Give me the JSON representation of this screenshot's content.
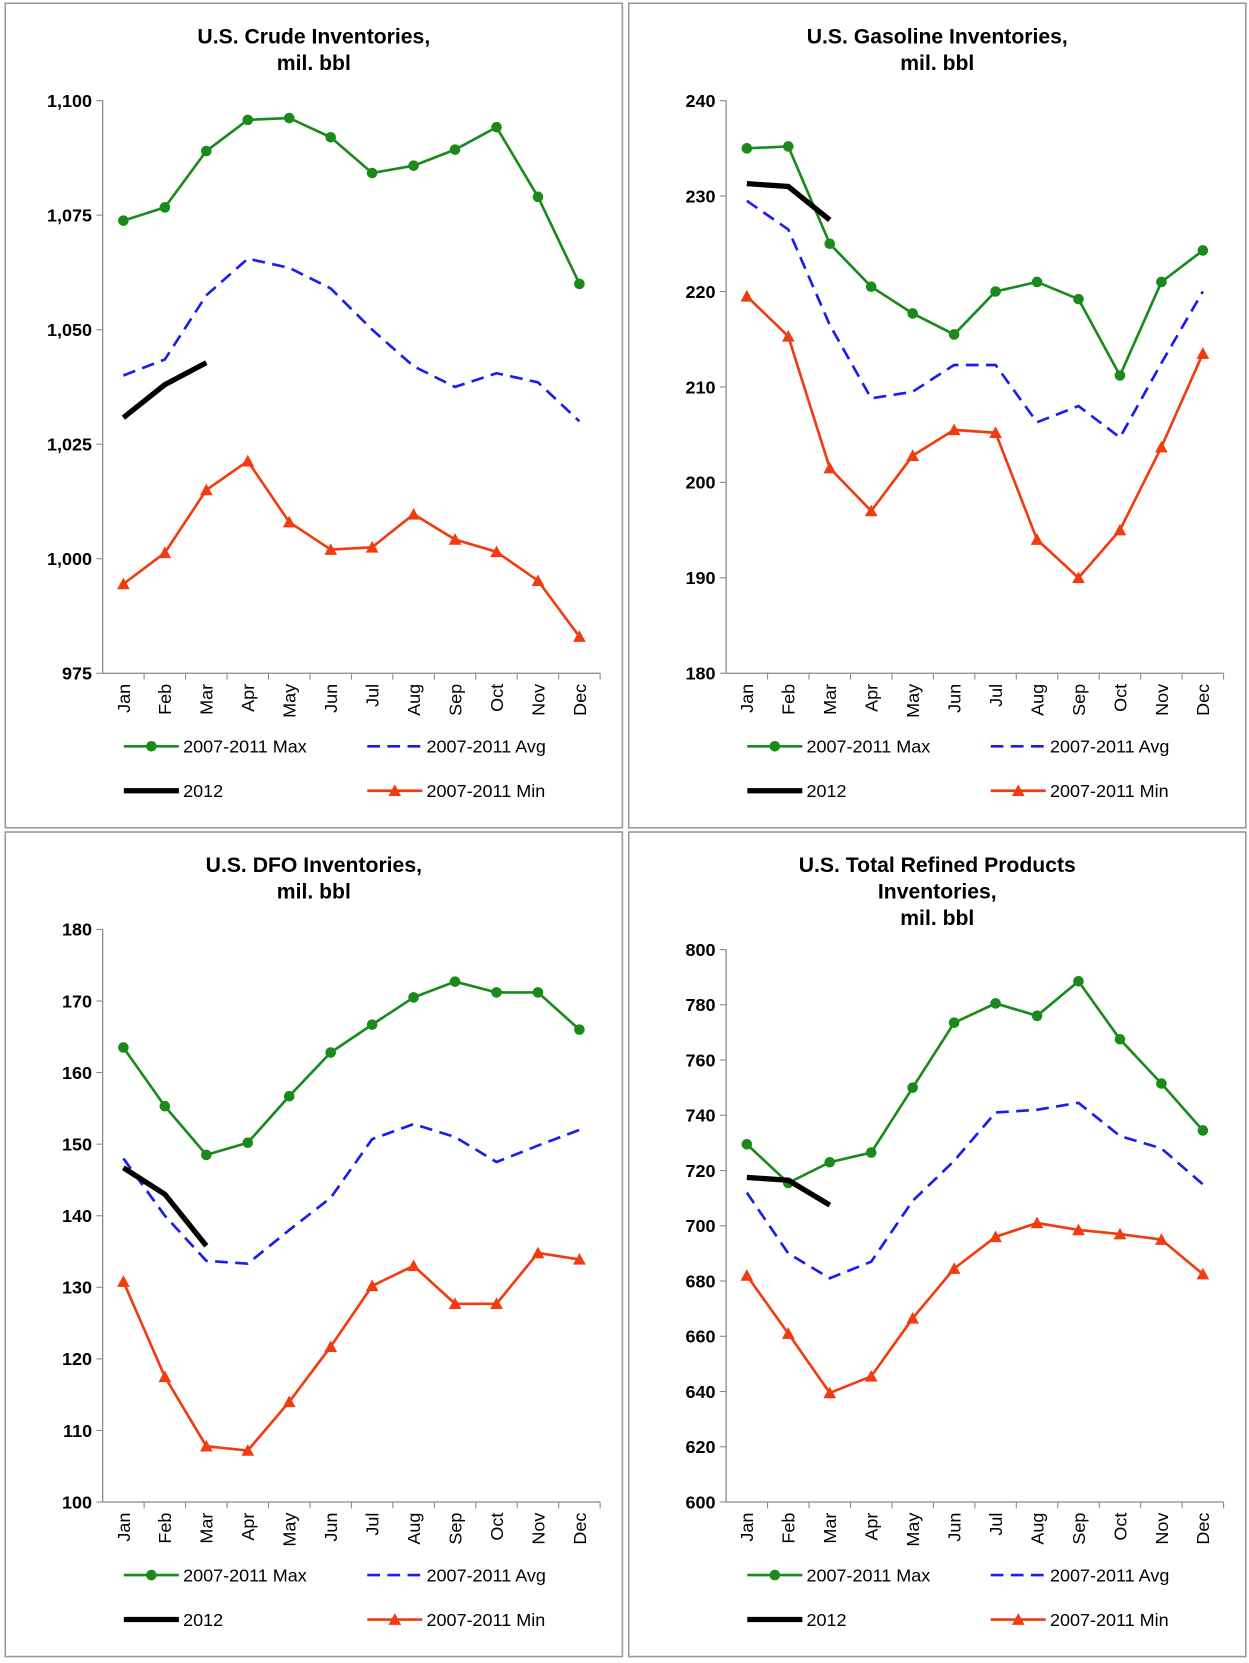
{
  "chart_data": [
    {
      "type": "line",
      "title": [
        "U.S. Crude Inventories,",
        "mil. bbl"
      ],
      "categories": [
        "Jan",
        "Feb",
        "Mar",
        "Apr",
        "May",
        "Jun",
        "Jul",
        "Aug",
        "Sep",
        "Oct",
        "Nov",
        "Dec"
      ],
      "ylim": [
        975,
        1100
      ],
      "yticks": [
        {
          "value": 975,
          "label": "975"
        },
        {
          "value": 1000,
          "label": "1,000"
        },
        {
          "value": 1025,
          "label": "1,025"
        },
        {
          "value": 1050,
          "label": "1,050"
        },
        {
          "value": 1075,
          "label": "1,075"
        },
        {
          "value": 1100,
          "label": "1,100"
        }
      ],
      "series": [
        {
          "name": "2007-2011 Max",
          "color": "#1a8a1a",
          "marker": "circle",
          "values": [
            1073.8,
            1076.7,
            1089,
            1095.8,
            1096.2,
            1092,
            1084.2,
            1085.8,
            1089.3,
            1094.2,
            1079,
            1060
          ]
        },
        {
          "name": "2007-2011 Avg",
          "color": "#1c1cf0",
          "dashed": true,
          "values": [
            1040,
            1043.5,
            1057.5,
            1065.5,
            1063.5,
            1059,
            1050,
            1042,
            1037.5,
            1040.5,
            1038.5,
            1030
          ]
        },
        {
          "name": "2012",
          "color": "#000000",
          "values": [
            1030.8,
            1038,
            1042.8,
            null,
            null,
            null,
            null,
            null,
            null,
            null,
            null,
            null
          ]
        },
        {
          "name": "2007-2011 Min",
          "color": "#f03c10",
          "marker": "triangle",
          "values": [
            994.5,
            1001.3,
            1015,
            1021.3,
            1008,
            1002,
            1002.5,
            1009.7,
            1004.2,
            1001.5,
            995.2,
            983
          ]
        }
      ]
    },
    {
      "type": "line",
      "title": [
        "U.S. Gasoline Inventories,",
        "mil. bbl"
      ],
      "categories": [
        "Jan",
        "Feb",
        "Mar",
        "Apr",
        "May",
        "Jun",
        "Jul",
        "Aug",
        "Sep",
        "Oct",
        "Nov",
        "Dec"
      ],
      "ylim": [
        180,
        240
      ],
      "yticks": [
        180,
        190,
        200,
        210,
        220,
        230,
        240
      ],
      "series": [
        {
          "name": "2007-2011 Max",
          "color": "#1a8a1a",
          "marker": "circle",
          "values": [
            235,
            235.2,
            225,
            220.5,
            217.7,
            215.5,
            220,
            221,
            219.2,
            211.2,
            221,
            224.3
          ]
        },
        {
          "name": "2007-2011 Avg",
          "color": "#1c1cf0",
          "dashed": true,
          "values": [
            229.5,
            226.5,
            216.5,
            208.8,
            209.5,
            212.3,
            212.3,
            206.3,
            208,
            204.7,
            212.5,
            220
          ]
        },
        {
          "name": "2012",
          "color": "#000000",
          "values": [
            231.3,
            231,
            227.5,
            null,
            null,
            null,
            null,
            null,
            null,
            null,
            null,
            null
          ]
        },
        {
          "name": "2007-2011 Min",
          "color": "#f03c10",
          "marker": "triangle",
          "values": [
            219.5,
            215.3,
            201.5,
            197,
            202.8,
            205.5,
            205.2,
            194,
            190,
            195,
            203.7,
            213.5
          ]
        }
      ]
    },
    {
      "type": "line",
      "title": [
        "U.S. DFO Inventories,",
        "mil. bbl"
      ],
      "categories": [
        "Jan",
        "Feb",
        "Mar",
        "Apr",
        "May",
        "Jun",
        "Jul",
        "Aug",
        "Sep",
        "Oct",
        "Nov",
        "Dec"
      ],
      "ylim": [
        100,
        180
      ],
      "yticks": [
        100,
        110,
        120,
        130,
        140,
        150,
        160,
        170,
        180
      ],
      "series": [
        {
          "name": "2007-2011 Max",
          "color": "#1a8a1a",
          "marker": "circle",
          "values": [
            163.5,
            155.3,
            148.5,
            150.2,
            156.7,
            162.8,
            166.7,
            170.5,
            172.7,
            171.2,
            171.2,
            166
          ]
        },
        {
          "name": "2007-2011 Avg",
          "color": "#1c1cf0",
          "dashed": true,
          "values": [
            148,
            140,
            133.7,
            133.3,
            138,
            142.5,
            150.7,
            152.8,
            151,
            147.5,
            149.8,
            152
          ]
        },
        {
          "name": "2012",
          "color": "#000000",
          "values": [
            146.7,
            143,
            135.8,
            null,
            null,
            null,
            null,
            null,
            null,
            null,
            null,
            null
          ]
        },
        {
          "name": "2007-2011 Min",
          "color": "#f03c10",
          "marker": "triangle",
          "values": [
            130.8,
            117.5,
            107.8,
            107.2,
            114,
            121.7,
            130.2,
            133,
            127.7,
            127.7,
            134.8,
            133.9
          ]
        }
      ]
    },
    {
      "type": "line",
      "title": [
        "U.S. Total Refined Products",
        "Inventories,",
        "mil. bbl"
      ],
      "categories": [
        "Jan",
        "Feb",
        "Mar",
        "Apr",
        "May",
        "Jun",
        "Jul",
        "Aug",
        "Sep",
        "Oct",
        "Nov",
        "Dec"
      ],
      "ylim": [
        600,
        800
      ],
      "yticks": [
        600,
        620,
        640,
        660,
        680,
        700,
        720,
        740,
        760,
        780,
        800
      ],
      "series": [
        {
          "name": "2007-2011 Max",
          "color": "#1a8a1a",
          "marker": "circle",
          "values": [
            729.5,
            715.5,
            723,
            726.5,
            750,
            773.5,
            780.5,
            776,
            788.5,
            767.5,
            751.5,
            734.5
          ]
        },
        {
          "name": "2007-2011 Avg",
          "color": "#1c1cf0",
          "dashed": true,
          "values": [
            712,
            690,
            681,
            687,
            709,
            723.5,
            741,
            742,
            744.5,
            732.5,
            728,
            715
          ]
        },
        {
          "name": "2012",
          "color": "#000000",
          "values": [
            717.5,
            716.5,
            707.5,
            null,
            null,
            null,
            null,
            null,
            null,
            null,
            null,
            null
          ]
        },
        {
          "name": "2007-2011 Min",
          "color": "#f03c10",
          "marker": "triangle",
          "values": [
            682,
            661,
            639.5,
            645.5,
            666.5,
            684.5,
            696,
            701,
            698.5,
            697,
            695,
            682.5
          ]
        }
      ]
    }
  ]
}
